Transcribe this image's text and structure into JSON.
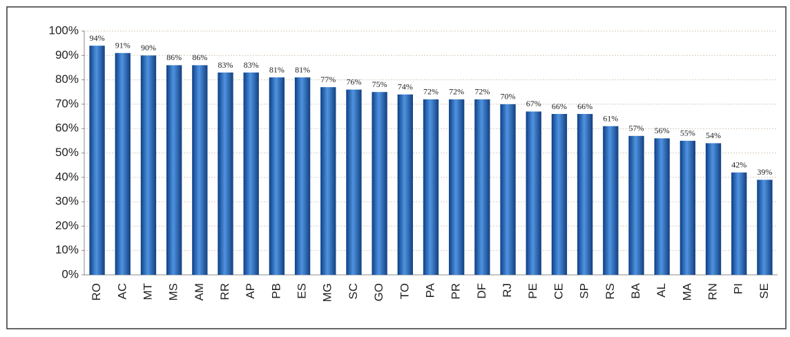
{
  "chart_data": {
    "type": "bar",
    "categories": [
      "RO",
      "AC",
      "MT",
      "MS",
      "AM",
      "RR",
      "AP",
      "PB",
      "ES",
      "MG",
      "SC",
      "GO",
      "TO",
      "PA",
      "PR",
      "DF",
      "RJ",
      "PE",
      "CE",
      "SP",
      "RS",
      "BA",
      "AL",
      "MA",
      "RN",
      "PI",
      "SE"
    ],
    "values": [
      94,
      91,
      90,
      86,
      86,
      83,
      83,
      81,
      81,
      77,
      76,
      75,
      74,
      72,
      72,
      72,
      70,
      67,
      66,
      66,
      61,
      57,
      56,
      55,
      54,
      42,
      39
    ],
    "value_labels": [
      "94%",
      "91%",
      "90%",
      "86%",
      "86%",
      "83%",
      "83%",
      "81%",
      "81%",
      "77%",
      "76%",
      "75%",
      "74%",
      "72%",
      "72%",
      "72%",
      "70%",
      "67%",
      "66%",
      "66%",
      "61%",
      "57%",
      "56%",
      "55%",
      "54%",
      "42%",
      "39%"
    ],
    "color": "#2a6cc0",
    "ylim": [
      0,
      100
    ],
    "yticks": [
      {
        "value": 0,
        "label": "0%"
      },
      {
        "value": 10,
        "label": "10%"
      },
      {
        "value": 20,
        "label": "20%"
      },
      {
        "value": 30,
        "label": "30%"
      },
      {
        "value": 40,
        "label": "40%"
      },
      {
        "value": 50,
        "label": "50%"
      },
      {
        "value": 60,
        "label": "60%"
      },
      {
        "value": 70,
        "label": "70%"
      },
      {
        "value": 80,
        "label": "80%"
      },
      {
        "value": 90,
        "label": "90%"
      },
      {
        "value": 100,
        "label": "100%"
      }
    ],
    "grid": true
  }
}
